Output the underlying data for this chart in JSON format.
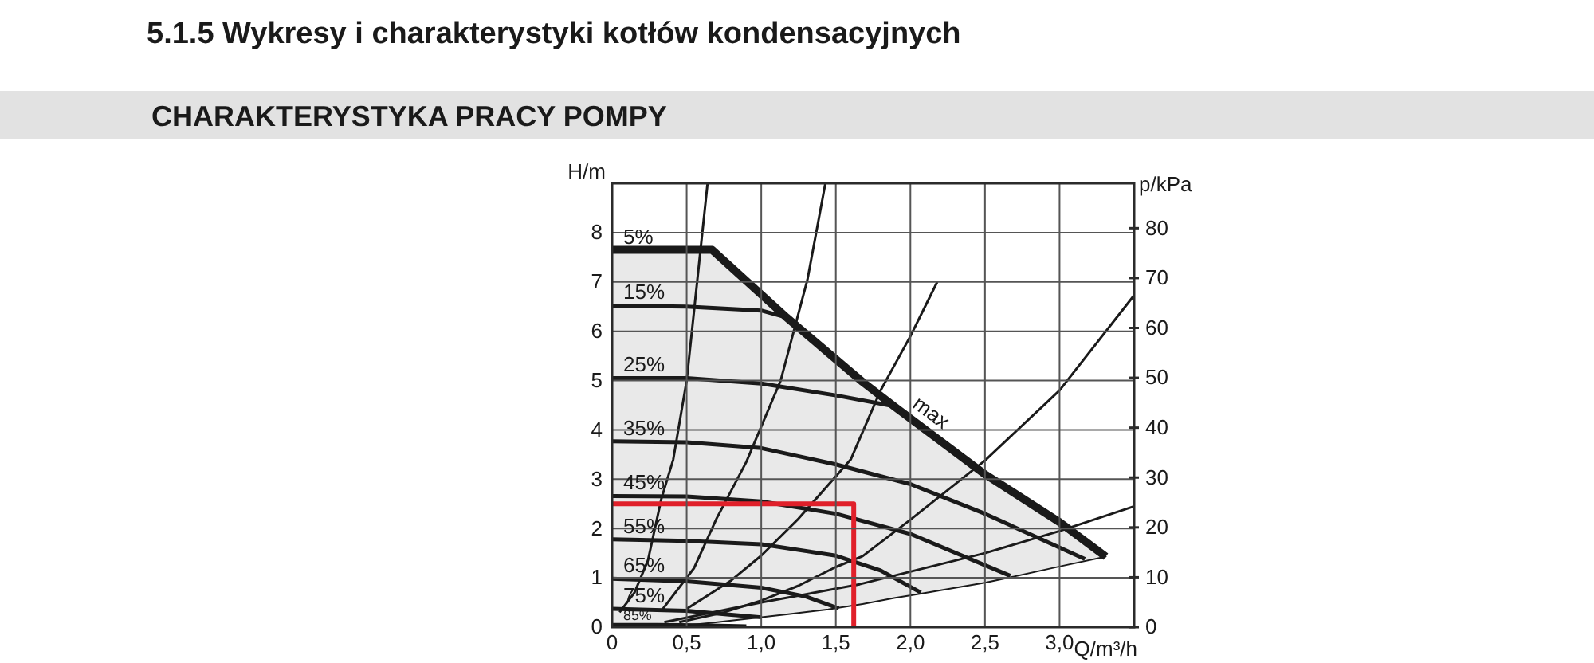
{
  "chart_data": {
    "type": "line",
    "title": "5.1.5 Wykresy i charakterystyki kotłów kondensacyjnych",
    "subtitle": "CHARAKTERYSTYKA PRACY POMPY",
    "xlabel": "Q/m³/h",
    "ylabel": "H/m",
    "y2label": "p/kPa",
    "xlim": [
      0,
      3.5
    ],
    "xticks": [
      0,
      {
        "value": 0.5,
        "label": "0,5"
      },
      {
        "value": 1,
        "label": "1,0"
      },
      {
        "value": 1.5,
        "label": "1,5"
      },
      {
        "value": 2,
        "label": "2,0"
      },
      {
        "value": 2.5,
        "label": "2,5"
      },
      {
        "value": 3,
        "label": "3,0"
      }
    ],
    "ylim": [
      0,
      9
    ],
    "yticks": [
      0,
      1,
      2,
      3,
      4,
      5,
      6,
      7,
      8
    ],
    "y2lim": [
      0,
      89
    ],
    "y2ticks": [
      0,
      10,
      20,
      30,
      40,
      50,
      60,
      70,
      80
    ],
    "grid": true,
    "annotations": [
      {
        "text": "max",
        "x": 2.08,
        "y": 4.11
      }
    ],
    "series": [
      {
        "color": "#1a1a1a",
        "x": [
          0.05,
          0.15,
          0.24,
          0.33,
          0.41,
          0.5,
          0.57,
          0.64
        ],
        "values": [
          0.3,
          0.7,
          1.35,
          2.6,
          3.4,
          5.0,
          7.0,
          9.0
        ]
      },
      {
        "color": "#1a1a1a",
        "x": [
          0.33,
          0.55,
          0.7,
          0.9,
          1.13,
          1.31,
          1.43
        ],
        "values": [
          0.33,
          1.2,
          2.2,
          3.35,
          5.0,
          7.05,
          9.0
        ]
      },
      {
        "color": "#1a1a1a",
        "x": [
          0.5,
          0.8,
          1.0,
          1.25,
          1.6,
          1.8,
          2.0,
          2.18
        ],
        "values": [
          0.37,
          0.95,
          1.45,
          2.2,
          3.4,
          4.8,
          5.9,
          7.0
        ]
      },
      {
        "color": "#1a1a1a",
        "x": [
          0.45,
          0.75,
          1.0,
          1.25,
          1.5,
          1.68,
          2.0,
          2.5,
          3.0,
          3.5
        ],
        "values": [
          0.1,
          0.3,
          0.54,
          0.84,
          1.22,
          1.44,
          2.18,
          3.38,
          4.8,
          6.73
        ]
      },
      {
        "color": "#1a1a1a",
        "x": [
          0.35,
          1.0,
          1.66,
          2.5,
          3.0,
          3.5
        ],
        "values": [
          0.1,
          0.5,
          0.87,
          1.5,
          1.95,
          2.45
        ]
      },
      {
        "name": "85%",
        "color": "#1a1a1a",
        "x": [
          0,
          0.3,
          0.6,
          0.9
        ],
        "values": [
          0.05,
          0.05,
          0.04,
          0.02
        ]
      },
      {
        "name": "75%",
        "color": "#1a1a1a",
        "x": [
          0,
          0.5,
          0.8,
          1.0
        ],
        "values": [
          0.37,
          0.33,
          0.25,
          0.2
        ]
      },
      {
        "name": "65%",
        "color": "#1a1a1a",
        "x": [
          0,
          0.5,
          1.0,
          1.3,
          1.52
        ],
        "values": [
          0.98,
          0.93,
          0.8,
          0.62,
          0.38
        ]
      },
      {
        "name": "55%",
        "color": "#1a1a1a",
        "x": [
          0,
          0.5,
          1.0,
          1.5,
          1.8,
          2.07
        ],
        "values": [
          1.78,
          1.75,
          1.68,
          1.45,
          1.15,
          0.7
        ]
      },
      {
        "name": "45%",
        "color": "#1a1a1a",
        "x": [
          0,
          0.5,
          1.0,
          1.5,
          2.0,
          2.67
        ],
        "values": [
          2.66,
          2.65,
          2.55,
          2.3,
          1.89,
          1.04
        ]
      },
      {
        "name": "35%",
        "color": "#1a1a1a",
        "x": [
          0,
          0.5,
          1.0,
          1.5,
          2.0,
          2.5,
          3.17
        ],
        "values": [
          3.77,
          3.75,
          3.63,
          3.3,
          2.9,
          2.3,
          1.38
        ]
      },
      {
        "name": "25%",
        "color": "#1a1a1a",
        "x": [
          0,
          0.5,
          1.0,
          1.5,
          1.89
        ],
        "values": [
          5.05,
          5.05,
          4.94,
          4.7,
          4.48
        ]
      },
      {
        "name": "15%",
        "color": "#1a1a1a",
        "x": [
          0,
          0.5,
          1.0,
          1.17
        ],
        "values": [
          6.52,
          6.5,
          6.42,
          6.28
        ]
      },
      {
        "name": "5%",
        "color": "#1a1a1a",
        "x": [
          0,
          0.37,
          0.67,
          1.17,
          1.45,
          1.68,
          1.89,
          2.07,
          2.5,
          2.67,
          3.0,
          3.31
        ],
        "values": [
          7.65,
          7.65,
          7.65,
          6.28,
          5.56,
          4.97,
          4.48,
          4.07,
          3.1,
          2.77,
          2.13,
          1.43
        ],
        "lower": [
          0,
          0,
          0.09,
          0.26,
          0.36,
          0.47,
          0.59,
          0.68,
          0.9,
          1.01,
          1.23,
          1.43
        ],
        "upper": [
          7.65,
          7.65,
          7.65,
          6.28,
          5.56,
          4.97,
          4.48,
          4.07,
          3.1,
          2.77,
          2.13,
          1.43
        ]
      },
      {
        "color": "#e0202a",
        "x": [
          0,
          1.62,
          1.62
        ],
        "values": [
          2.5,
          2.5,
          0
        ]
      }
    ]
  }
}
